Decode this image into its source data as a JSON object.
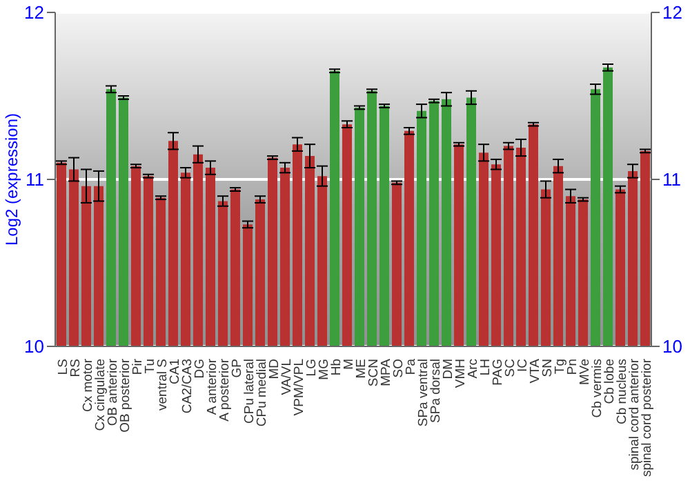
{
  "chart_data": {
    "type": "bar",
    "ylabel": "Log2 (expression)",
    "categories": [
      "LS",
      "RS",
      "Cx motor",
      "Cx cingulate",
      "OB anterior",
      "OB posterior",
      "Pir",
      "Tu",
      "ventral S",
      "CA1",
      "CA2/CA3",
      "DG",
      "A anterior",
      "A posterior",
      "GP",
      "CPu lateral",
      "CPu medial",
      "MD",
      "VA/VL",
      "VPM/VPL",
      "LG",
      "MG",
      "Hb",
      "M",
      "ME",
      "SCN",
      "MPA",
      "SO",
      "Pa",
      "SPa ventral",
      "SPa dorsal",
      "DM",
      "VMH",
      "Arc",
      "LH",
      "PAG",
      "SC",
      "IC",
      "VTA",
      "SN",
      "Tg",
      "Pn",
      "MVe",
      "Cb vermis",
      "Cb lobe",
      "Cb nucleus",
      "spinal cord anterior",
      "spinal cord posterior"
    ],
    "values": [
      11.1,
      11.06,
      10.96,
      10.96,
      11.54,
      11.49,
      11.08,
      11.02,
      10.89,
      11.23,
      11.04,
      11.15,
      11.07,
      10.87,
      10.94,
      10.73,
      10.88,
      11.13,
      11.07,
      11.21,
      11.14,
      11.02,
      11.65,
      11.33,
      11.43,
      11.53,
      11.44,
      10.98,
      11.29,
      11.41,
      11.47,
      11.48,
      11.21,
      11.49,
      11.16,
      11.09,
      11.2,
      11.19,
      11.33,
      10.94,
      11.08,
      10.9,
      10.88,
      11.54,
      11.67,
      10.94,
      11.05,
      11.17
    ],
    "errors": [
      0.01,
      0.07,
      0.1,
      0.09,
      0.02,
      0.01,
      0.01,
      0.01,
      0.01,
      0.05,
      0.03,
      0.05,
      0.04,
      0.03,
      0.01,
      0.02,
      0.02,
      0.01,
      0.03,
      0.04,
      0.07,
      0.06,
      0.01,
      0.02,
      0.01,
      0.01,
      0.01,
      0.01,
      0.02,
      0.04,
      0.01,
      0.04,
      0.01,
      0.04,
      0.05,
      0.03,
      0.02,
      0.05,
      0.01,
      0.05,
      0.04,
      0.04,
      0.01,
      0.03,
      0.02,
      0.02,
      0.04,
      0.01
    ],
    "colors": [
      "#b83232",
      "#b83232",
      "#b83232",
      "#b83232",
      "#3c9e3c",
      "#3c9e3c",
      "#b83232",
      "#b83232",
      "#b83232",
      "#b83232",
      "#b83232",
      "#b83232",
      "#b83232",
      "#b83232",
      "#b83232",
      "#b83232",
      "#b83232",
      "#b83232",
      "#b83232",
      "#b83232",
      "#b83232",
      "#b83232",
      "#3c9e3c",
      "#b83232",
      "#3c9e3c",
      "#3c9e3c",
      "#3c9e3c",
      "#b83232",
      "#b83232",
      "#3c9e3c",
      "#3c9e3c",
      "#3c9e3c",
      "#b83232",
      "#3c9e3c",
      "#b83232",
      "#b83232",
      "#b83232",
      "#b83232",
      "#b83232",
      "#b83232",
      "#b83232",
      "#b83232",
      "#b83232",
      "#3c9e3c",
      "#3c9e3c",
      "#b83232",
      "#b83232",
      "#b83232"
    ],
    "ylim": [
      10,
      12
    ],
    "yticks": [
      10,
      11,
      12
    ],
    "y2lim": [
      10,
      12
    ],
    "y2ticks": [
      10,
      11,
      12
    ],
    "grid": "y"
  }
}
